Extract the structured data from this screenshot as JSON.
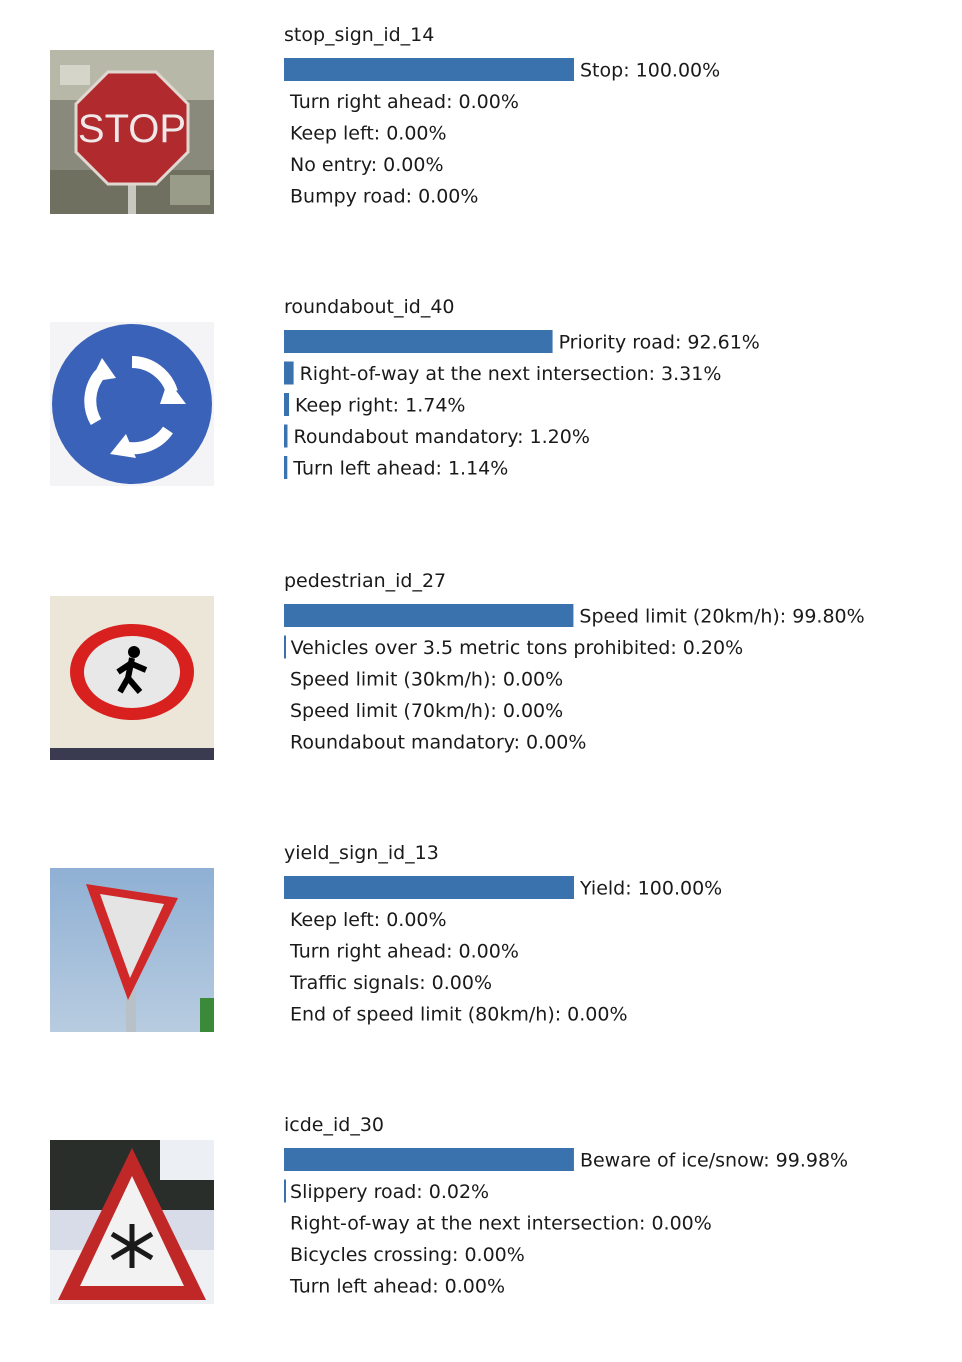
{
  "colors": {
    "bar": "#3a72ad"
  },
  "chart_data": [
    {
      "type": "bar",
      "orientation": "horizontal",
      "title": "stop_sign_id_14",
      "image": "stop-sign-icon",
      "xlim": [
        0,
        100
      ],
      "categories": [
        "Stop",
        "Turn right ahead",
        "Keep left",
        "No entry",
        "Bumpy road"
      ],
      "values": [
        100.0,
        0.0,
        0.0,
        0.0,
        0.0
      ],
      "labels": [
        "Stop: 100.00%",
        "Turn right ahead: 0.00%",
        "Keep left: 0.00%",
        "No entry: 0.00%",
        "Bumpy road: 0.00%"
      ]
    },
    {
      "type": "bar",
      "orientation": "horizontal",
      "title": "roundabout_id_40",
      "image": "roundabout-sign-icon",
      "xlim": [
        0,
        100
      ],
      "categories": [
        "Priority road",
        "Right-of-way at the next intersection",
        "Keep right",
        "Roundabout mandatory",
        "Turn left ahead"
      ],
      "values": [
        92.61,
        3.31,
        1.74,
        1.2,
        1.14
      ],
      "labels": [
        "Priority road: 92.61%",
        "Right-of-way at the next intersection: 3.31%",
        "Keep right: 1.74%",
        "Roundabout mandatory: 1.20%",
        "Turn left ahead: 1.14%"
      ]
    },
    {
      "type": "bar",
      "orientation": "horizontal",
      "title": "pedestrian_id_27",
      "image": "pedestrian-sign-icon",
      "xlim": [
        0,
        100
      ],
      "categories": [
        "Speed limit (20km/h)",
        "Vehicles over 3.5 metric tons prohibited",
        "Speed limit (30km/h)",
        "Speed limit (70km/h)",
        "Roundabout mandatory"
      ],
      "values": [
        99.8,
        0.2,
        0.0,
        0.0,
        0.0
      ],
      "labels": [
        "Speed limit (20km/h): 99.80%",
        "Vehicles over 3.5 metric tons prohibited: 0.20%",
        "Speed limit (30km/h): 0.00%",
        "Speed limit (70km/h): 0.00%",
        "Roundabout mandatory: 0.00%"
      ]
    },
    {
      "type": "bar",
      "orientation": "horizontal",
      "title": "yield_sign_id_13",
      "image": "yield-sign-icon",
      "xlim": [
        0,
        100
      ],
      "categories": [
        "Yield",
        "Keep left",
        "Turn right ahead",
        "Traffic signals",
        "End of speed limit (80km/h)"
      ],
      "values": [
        100.0,
        0.0,
        0.0,
        0.0,
        0.0
      ],
      "labels": [
        "Yield: 100.00%",
        "Keep left: 0.00%",
        "Turn right ahead: 0.00%",
        "Traffic signals: 0.00%",
        "End of speed limit (80km/h): 0.00%"
      ]
    },
    {
      "type": "bar",
      "orientation": "horizontal",
      "title": "icde_id_30",
      "image": "ice-snow-warning-sign-icon",
      "xlim": [
        0,
        100
      ],
      "categories": [
        "Beware of ice/snow",
        "Slippery road",
        "Right-of-way at the next intersection",
        "Bicycles crossing",
        "Turn left ahead"
      ],
      "values": [
        99.98,
        0.02,
        0.0,
        0.0,
        0.0
      ],
      "labels": [
        "Beware of ice/snow: 99.98%",
        "Slippery road: 0.02%",
        "Right-of-way at the next intersection: 0.00%",
        "Bicycles crossing: 0.00%",
        "Turn left ahead: 0.00%"
      ]
    }
  ]
}
